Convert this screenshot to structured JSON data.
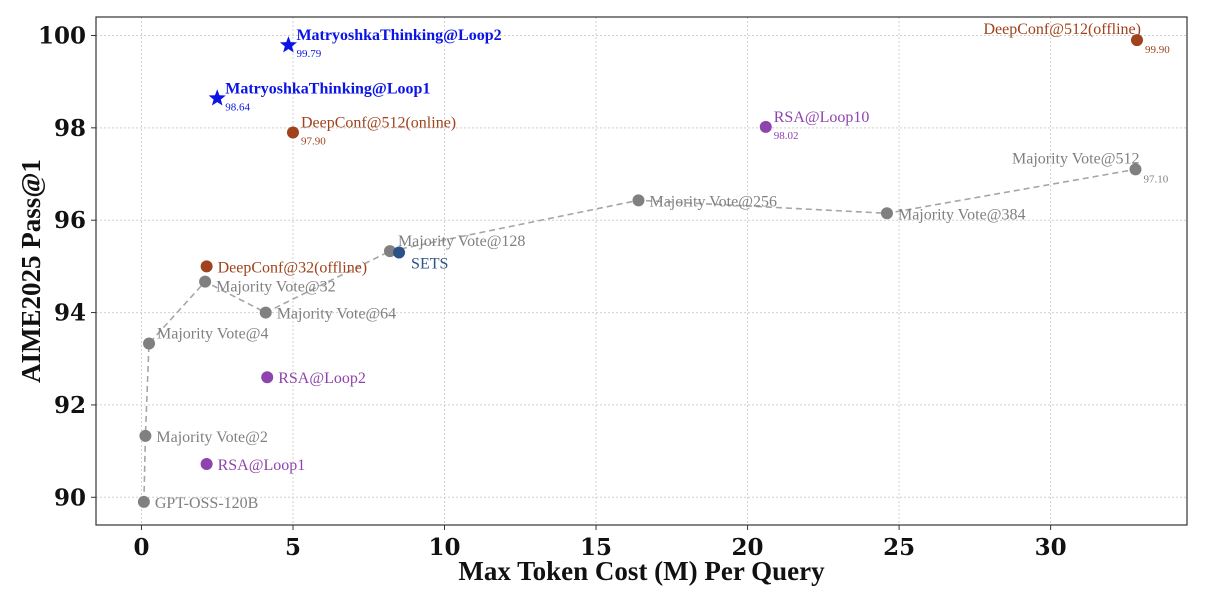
{
  "chart_data": {
    "type": "scatter",
    "title": "",
    "xlabel": "Max Token Cost (M) Per Query",
    "ylabel": "AIME2025 Pass@1",
    "xlim": [
      -1.5,
      34.5
    ],
    "ylim": [
      89.4,
      100.4
    ],
    "xticks": [
      0,
      5,
      10,
      15,
      20,
      25,
      30
    ],
    "yticks": [
      90,
      92,
      94,
      96,
      98,
      100
    ],
    "grid": true,
    "colors": {
      "gray": "#808080",
      "purple": "#8e44ad",
      "orange": "#a0421b",
      "blue": "#0a14e6",
      "navy": "#2b5287",
      "line": "#a6a6a6"
    },
    "majority_line": {
      "x": [
        0.08,
        0.13,
        0.25,
        2.1,
        4.1,
        8.2,
        16.4,
        24.6,
        32.8
      ],
      "y": [
        89.9,
        91.33,
        93.33,
        94.67,
        94.0,
        95.33,
        96.43,
        96.15,
        97.1
      ]
    },
    "points": [
      {
        "label": "GPT-OSS-120B",
        "sub": "",
        "x": 0.08,
        "y": 89.9,
        "color": "gray",
        "marker": "circle",
        "pos": "right",
        "bold": false
      },
      {
        "label": "Majority Vote@2",
        "sub": "",
        "x": 0.13,
        "y": 91.33,
        "color": "gray",
        "marker": "circle",
        "pos": "right",
        "bold": false
      },
      {
        "label": "Majority Vote@4",
        "sub": "",
        "x": 0.25,
        "y": 93.33,
        "color": "gray",
        "marker": "circle",
        "pos": "upright",
        "bold": false
      },
      {
        "label": "Majority Vote@32",
        "sub": "",
        "x": 2.1,
        "y": 94.67,
        "color": "gray",
        "marker": "circle",
        "pos": "right-low",
        "bold": false
      },
      {
        "label": "Majority Vote@64",
        "sub": "",
        "x": 4.1,
        "y": 94.0,
        "color": "gray",
        "marker": "circle",
        "pos": "right",
        "bold": false
      },
      {
        "label": "Majority Vote@128",
        "sub": "",
        "x": 8.2,
        "y": 95.33,
        "color": "gray",
        "marker": "circle",
        "pos": "upright",
        "bold": false
      },
      {
        "label": "Majority Vote@256",
        "sub": "",
        "x": 16.4,
        "y": 96.43,
        "color": "gray",
        "marker": "circle",
        "pos": "right",
        "bold": false
      },
      {
        "label": "Majority Vote@384",
        "sub": "",
        "x": 24.6,
        "y": 96.15,
        "color": "gray",
        "marker": "circle",
        "pos": "right",
        "bold": false
      },
      {
        "label": "Majority Vote@512",
        "sub": "97.10",
        "x": 32.8,
        "y": 97.1,
        "color": "gray",
        "marker": "circle",
        "pos": "upleft",
        "bold": false
      },
      {
        "label": "RSA@Loop1",
        "sub": "",
        "x": 2.15,
        "y": 90.72,
        "color": "purple",
        "marker": "circle",
        "pos": "right",
        "bold": false
      },
      {
        "label": "RSA@Loop2",
        "sub": "",
        "x": 4.15,
        "y": 92.6,
        "color": "purple",
        "marker": "circle",
        "pos": "right",
        "bold": false
      },
      {
        "label": "RSA@Loop10",
        "sub": "98.02",
        "x": 20.6,
        "y": 98.02,
        "color": "purple",
        "marker": "circle",
        "pos": "upright",
        "bold": false
      },
      {
        "label": "DeepConf@32(offline)",
        "sub": "",
        "x": 2.15,
        "y": 95.0,
        "color": "orange",
        "marker": "circle",
        "pos": "right",
        "bold": false
      },
      {
        "label": "DeepConf@512(online)",
        "sub": "97.90",
        "x": 5.0,
        "y": 97.9,
        "color": "orange",
        "marker": "circle",
        "pos": "upright",
        "bold": false
      },
      {
        "label": "DeepConf@512(offline)",
        "sub": "99.90",
        "x": 32.85,
        "y": 99.9,
        "color": "orange",
        "marker": "circle",
        "pos": "upleft",
        "bold": false
      },
      {
        "label": "SETS",
        "sub": "",
        "x": 8.5,
        "y": 95.3,
        "color": "navy",
        "marker": "circle",
        "pos": "below-right",
        "bold": false
      },
      {
        "label": "MatryoshkaThinking@Loop1",
        "sub": "98.64",
        "x": 2.5,
        "y": 98.64,
        "color": "blue",
        "marker": "star",
        "pos": "upright",
        "bold": true
      },
      {
        "label": "MatryoshkaThinking@Loop2",
        "sub": "99.79",
        "x": 4.85,
        "y": 99.79,
        "color": "blue",
        "marker": "star",
        "pos": "upright",
        "bold": true
      }
    ]
  }
}
